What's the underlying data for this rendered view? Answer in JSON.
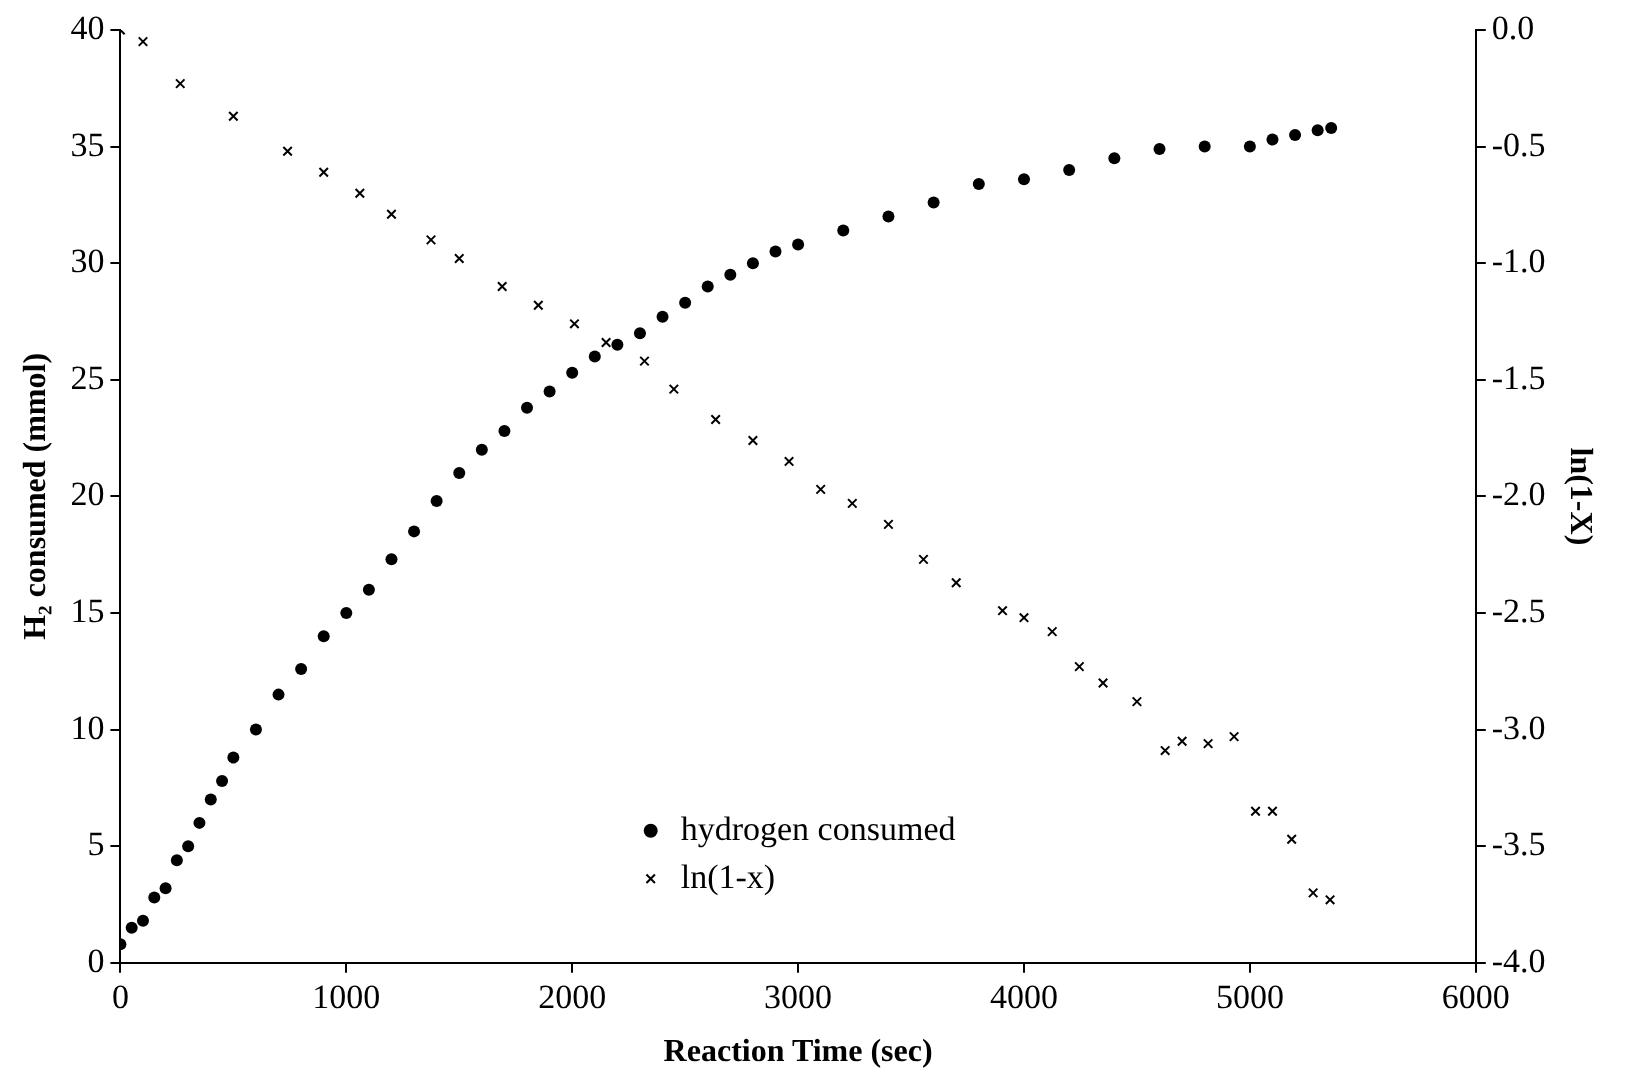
{
  "chart_data": {
    "type": "scatter",
    "xlabel": "Reaction Time (sec)",
    "ylabel": "H₂ consumed (mmol)",
    "y2label": "ln(1-X)",
    "xlim": [
      0,
      6000
    ],
    "xticks": [
      0,
      1000,
      2000,
      3000,
      4000,
      5000,
      6000
    ],
    "ylim": [
      0,
      40
    ],
    "yticks": [
      0,
      5,
      10,
      15,
      20,
      25,
      30,
      35,
      40
    ],
    "y2lim": [
      -4,
      0
    ],
    "y2ticks": [
      {
        "value": 0,
        "label": "0.0"
      },
      {
        "value": -0.5,
        "label": "-0.5"
      },
      {
        "value": -1,
        "label": "-1.0"
      },
      {
        "value": -1.5,
        "label": "-1.5"
      },
      {
        "value": -2,
        "label": "-2.0"
      },
      {
        "value": -2.5,
        "label": "-2.5"
      },
      {
        "value": -3,
        "label": "-3.0"
      },
      {
        "value": -3.5,
        "label": "-3.5"
      },
      {
        "value": -4,
        "label": "-4.0"
      }
    ],
    "legend": "bottom",
    "grid": false,
    "series": [
      {
        "name": "hydrogen consumed",
        "color": "#000000",
        "marker": "circle",
        "x": [
          0,
          50,
          100,
          150,
          200,
          250,
          300,
          350,
          400,
          450,
          500,
          600,
          700,
          800,
          900,
          1000,
          1100,
          1200,
          1300,
          1400,
          1500,
          1600,
          1700,
          1800,
          1900,
          2000,
          2100,
          2200,
          2300,
          2400,
          2500,
          2600,
          2700,
          2800,
          2900,
          3000,
          3200,
          3400,
          3600,
          3800,
          4000,
          4200,
          4400,
          4600,
          4800,
          5000,
          5100,
          5200,
          5300,
          5360
        ],
        "values": [
          0.8,
          1.5,
          1.8,
          2.8,
          3.2,
          4.4,
          5.0,
          6.0,
          7.0,
          7.8,
          8.8,
          10.0,
          11.5,
          12.6,
          14.0,
          15.0,
          16.0,
          17.3,
          18.5,
          19.8,
          21.0,
          22.0,
          22.8,
          23.8,
          24.5,
          25.3,
          26.0,
          26.5,
          27.0,
          27.7,
          28.3,
          29.0,
          29.5,
          30.0,
          30.5,
          30.8,
          31.4,
          32.0,
          32.6,
          33.4,
          33.6,
          34.0,
          34.5,
          34.9,
          35.0,
          35.0,
          35.3,
          35.5,
          35.7,
          35.8
        ]
      },
      {
        "name": "ln(1-x)",
        "color": "#000000",
        "marker": "cross",
        "axis": "y2",
        "x": [
          0,
          100,
          265,
          500,
          740,
          900,
          1060,
          1200,
          1375,
          1500,
          1690,
          1850,
          2010,
          2150,
          2320,
          2450,
          2635,
          2800,
          2960,
          3100,
          3240,
          3400,
          3555,
          3700,
          3905,
          4000,
          4125,
          4245,
          4350,
          4500,
          4625,
          4700,
          4815,
          4930,
          5025,
          5100,
          5185,
          5280,
          5355
        ],
        "values": [
          0,
          -0.05,
          -0.23,
          -0.37,
          -0.52,
          -0.61,
          -0.7,
          -0.79,
          -0.9,
          -0.98,
          -1.1,
          -1.18,
          -1.26,
          -1.34,
          -1.42,
          -1.54,
          -1.67,
          -1.76,
          -1.85,
          -1.97,
          -2.03,
          -2.12,
          -2.27,
          -2.37,
          -2.49,
          -2.52,
          -2.58,
          -2.73,
          -2.8,
          -2.88,
          -3.09,
          -3.05,
          -3.06,
          -3.03,
          -3.35,
          -3.35,
          -3.47,
          -3.7,
          -3.73
        ]
      }
    ]
  }
}
